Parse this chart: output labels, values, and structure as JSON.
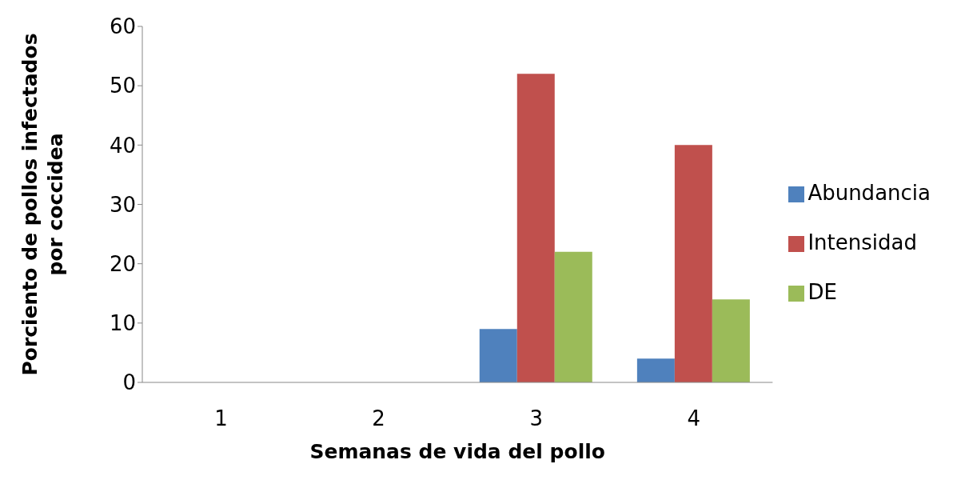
{
  "chart_data": {
    "type": "bar",
    "xlabel": "Semanas de vida del pollo",
    "ylabel": "Porciento de pollos infectados por coccidea",
    "categories": [
      "1",
      "2",
      "3",
      "4"
    ],
    "series": [
      {
        "name": "Abundancia",
        "color": "#4f81bd",
        "values": [
          0,
          0,
          9,
          4
        ]
      },
      {
        "name": "Intensidad",
        "color": "#c0504d",
        "values": [
          0,
          0,
          52,
          40
        ]
      },
      {
        "name": "DE",
        "color": "#9bbb59",
        "values": [
          0,
          0,
          22,
          14
        ]
      }
    ],
    "ylim": [
      0,
      60
    ],
    "yticks": [
      0,
      10,
      20,
      30,
      40,
      50,
      60
    ],
    "grid": false,
    "legend": "right"
  }
}
